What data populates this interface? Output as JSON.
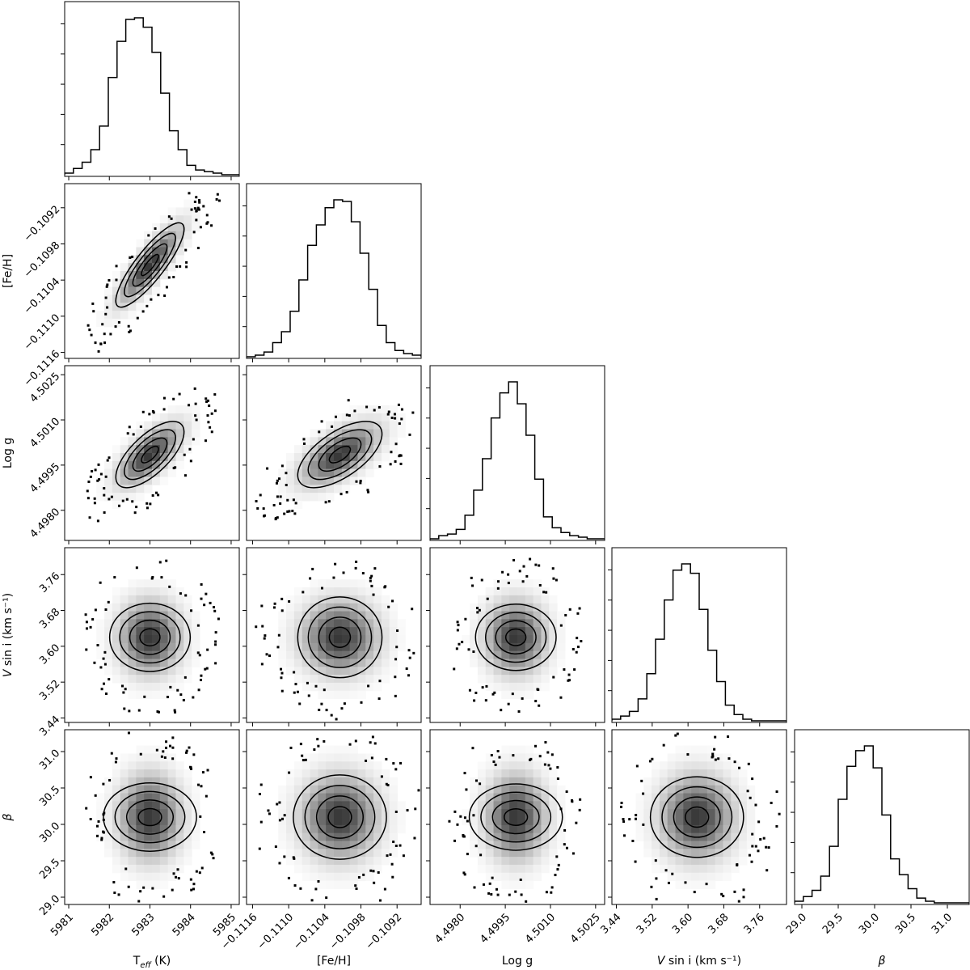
{
  "chart_data": {
    "type": "corner",
    "parameters": [
      {
        "label": "T",
        "label_sub": "eff",
        "label_suffix": " (K)",
        "ticks": [
          "5981",
          "5982",
          "5983",
          "5984",
          "5985"
        ],
        "tick_values": [
          5981,
          5982,
          5983,
          5984,
          5985
        ],
        "range": [
          5980.9,
          5985.2
        ],
        "peak": 5983.0,
        "sigma": 0.42
      },
      {
        "label": "[Fe/H]",
        "ticks": [
          "−0.1116",
          "−0.1110",
          "−0.1104",
          "−0.1098",
          "−0.1092"
        ],
        "tick_values": [
          -0.1116,
          -0.111,
          -0.1104,
          -0.1098,
          -0.1092
        ],
        "range": [
          -0.1117,
          -0.1088
        ],
        "peak": -0.11015,
        "sigma": 0.00035
      },
      {
        "label": "Log g",
        "ticks": [
          "4.4980",
          "4.4995",
          "4.5010",
          "4.5025"
        ],
        "tick_values": [
          4.498,
          4.4995,
          4.501,
          4.5025
        ],
        "range": [
          4.497,
          4.5028
        ],
        "peak": 4.49985,
        "sigma": 0.00055
      },
      {
        "label": "V sin i (km s⁻¹)",
        "label_italic_prefix": "V",
        "ticks": [
          "3.44",
          "3.52",
          "3.60",
          "3.68",
          "3.76"
        ],
        "tick_values": [
          3.44,
          3.52,
          3.6,
          3.68,
          3.76
        ],
        "range": [
          3.43,
          3.82
        ],
        "peak": 3.62,
        "sigma": 0.045
      },
      {
        "label": "β",
        "ticks": [
          "29.0",
          "29.5",
          "30.0",
          "30.5",
          "31.0"
        ],
        "tick_values": [
          29.0,
          29.5,
          30.0,
          30.5,
          31.0
        ],
        "range": [
          28.9,
          31.3
        ],
        "peak": 30.1,
        "sigma": 0.32
      }
    ],
    "histogram_fractions": [
      [
        0.01,
        0.04,
        0.08,
        0.16,
        0.31,
        0.62,
        0.85,
        0.99,
        1.0,
        0.94,
        0.78,
        0.52,
        0.28,
        0.16,
        0.06,
        0.03,
        0.02,
        0.01,
        0.0,
        0.0
      ],
      [
        0.0,
        0.01,
        0.03,
        0.09,
        0.16,
        0.29,
        0.49,
        0.71,
        0.84,
        0.95,
        1.0,
        0.99,
        0.86,
        0.66,
        0.43,
        0.2,
        0.09,
        0.04,
        0.02,
        0.01
      ],
      [
        0.0,
        0.02,
        0.03,
        0.06,
        0.15,
        0.31,
        0.51,
        0.77,
        0.93,
        1.0,
        0.86,
        0.66,
        0.38,
        0.14,
        0.07,
        0.04,
        0.02,
        0.01,
        0.0,
        0.0
      ],
      [
        0.01,
        0.03,
        0.06,
        0.14,
        0.3,
        0.52,
        0.77,
        0.96,
        1.0,
        0.94,
        0.71,
        0.45,
        0.25,
        0.1,
        0.04,
        0.01,
        0.0,
        0.0,
        0.0,
        0.0
      ],
      [
        0.01,
        0.04,
        0.08,
        0.17,
        0.36,
        0.66,
        0.87,
        0.97,
        1.0,
        0.86,
        0.56,
        0.28,
        0.18,
        0.09,
        0.03,
        0.01,
        0.0,
        0.0,
        0.0,
        0.0
      ]
    ],
    "correlations": {
      "1-0": 0.85,
      "2-0": 0.68,
      "2-1": 0.62
    },
    "contour_levels": 4,
    "grid": false,
    "legend": "none"
  }
}
